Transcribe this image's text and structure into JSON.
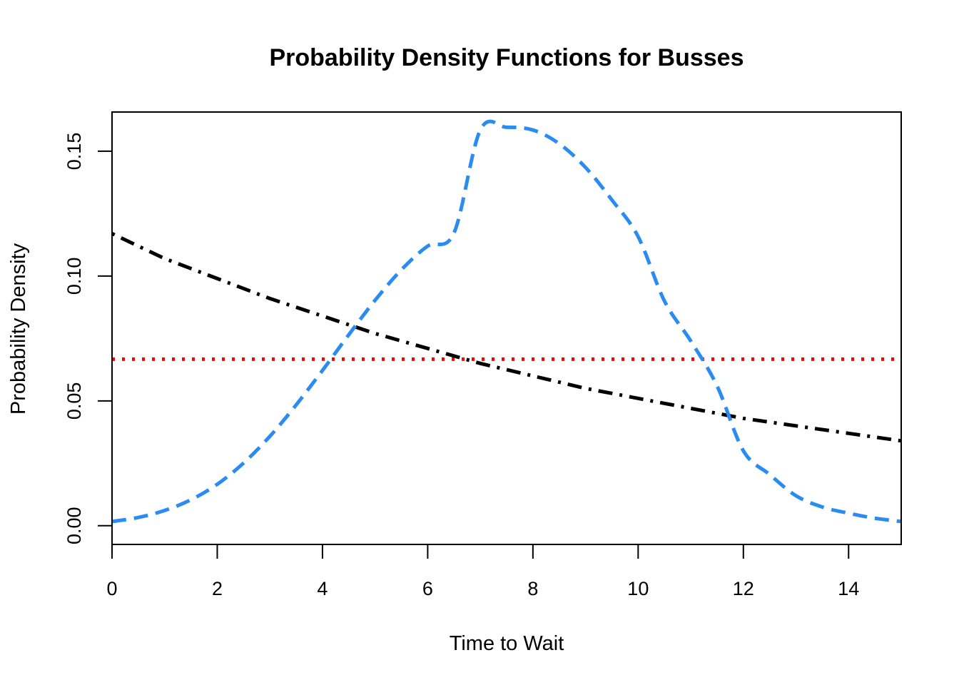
{
  "chart_data": {
    "type": "line",
    "title": "Probability Density Functions for Busses",
    "xlabel": "Time to Wait",
    "ylabel": "Probability Density",
    "xlim": [
      0,
      15
    ],
    "ylim": [
      -0.0075,
      0.1657
    ],
    "x_ticks": [
      "0",
      "2",
      "4",
      "6",
      "8",
      "10",
      "12",
      "14"
    ],
    "y_ticks": [
      "0.00",
      "0.05",
      "0.10",
      "0.15"
    ],
    "grid": false,
    "legend": "none",
    "series": [
      {
        "color": "#ff0000",
        "dash": "dotted",
        "x": [
          0,
          15
        ],
        "y": [
          0.0667,
          0.0667
        ]
      },
      {
        "color": "#000000",
        "dash": "dotdash",
        "x": [
          0,
          1,
          2,
          3,
          4,
          5,
          6,
          7,
          8,
          9,
          10,
          11,
          12,
          13,
          14,
          15
        ],
        "y": [
          0.117,
          0.107,
          0.099,
          0.091,
          0.084,
          0.077,
          0.071,
          0.065,
          0.06,
          0.055,
          0.051,
          0.047,
          0.043,
          0.04,
          0.037,
          0.034
        ]
      },
      {
        "color": "#2a8cf0",
        "dash": "dashed",
        "x": [
          0,
          0.5,
          1,
          1.5,
          2,
          2.5,
          3,
          3.5,
          4,
          4.5,
          5,
          5.5,
          6,
          6.5,
          7,
          7.5,
          8,
          8.5,
          9,
          9.5,
          10,
          10.5,
          11,
          11.5,
          12,
          12.5,
          13,
          13.5,
          14,
          14.5,
          15
        ],
        "y": [
          0.0017,
          0.0033,
          0.0061,
          0.0104,
          0.0166,
          0.0251,
          0.0358,
          0.0484,
          0.0622,
          0.0765,
          0.0903,
          0.1025,
          0.112,
          0.1173,
          0.1585,
          0.1596,
          0.1585,
          0.153,
          0.1435,
          0.1305,
          0.1158,
          0.09,
          0.074,
          0.056,
          0.03,
          0.0205,
          0.012,
          0.0075,
          0.005,
          0.003,
          0.0017
        ]
      }
    ]
  }
}
